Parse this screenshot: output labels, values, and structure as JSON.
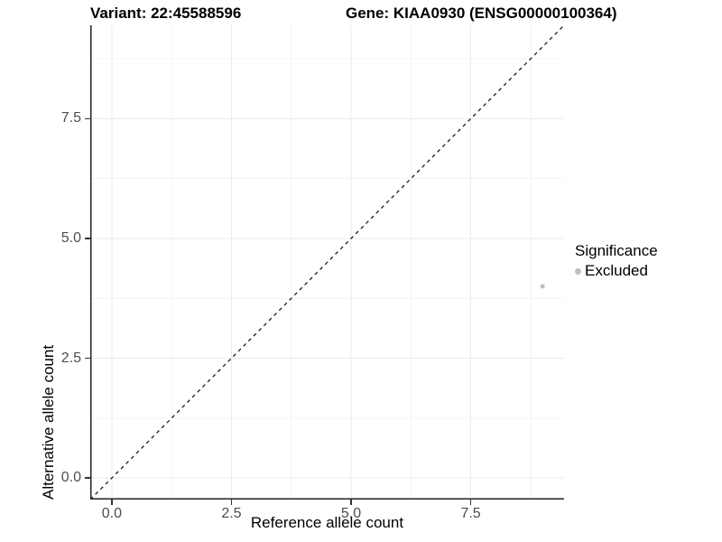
{
  "titles": {
    "variant": "Variant: 22:45588596",
    "gene": "Gene: KIAA0930 (ENSG00000100364)"
  },
  "legend": {
    "title": "Significance",
    "items": [
      {
        "label": "Excluded",
        "color": "#bebebe"
      }
    ]
  },
  "colors": {
    "background": "#ffffff",
    "grid_major": "#ebebeb",
    "grid_minor": "#f4f4f4",
    "axis_line": "#222222",
    "tick_mark": "#333333",
    "tick_label": "#4d4d4d",
    "reference_line": "#1a1a1a",
    "point": "#bebebe"
  },
  "chart_data": {
    "type": "scatter",
    "title": "Variant: 22:45588596   Gene: KIAA0930 (ENSG00000100364)",
    "xlabel": "Reference allele count",
    "ylabel": "Alternative allele count",
    "xlim": [
      -0.45,
      9.45
    ],
    "ylim": [
      -0.45,
      9.45
    ],
    "x_ticks": [
      0.0,
      2.5,
      5.0,
      7.5
    ],
    "y_ticks": [
      0.0,
      2.5,
      5.0,
      7.5
    ],
    "x_tick_labels": [
      "0.0",
      "2.5",
      "5.0",
      "7.5"
    ],
    "y_tick_labels": [
      "0.0",
      "2.5",
      "5.0",
      "7.5"
    ],
    "x_minor_ticks": [
      1.25,
      3.75,
      6.25,
      8.75
    ],
    "y_minor_ticks": [
      1.25,
      3.75,
      6.25,
      8.75
    ],
    "grid": "major+minor",
    "legend_position": "right",
    "reference_line": {
      "kind": "identity",
      "equation": "y = x",
      "style": "dashed"
    },
    "series": [
      {
        "name": "Excluded",
        "color": "#bebebe",
        "points": [
          {
            "x": 9,
            "y": 4
          }
        ]
      }
    ]
  }
}
